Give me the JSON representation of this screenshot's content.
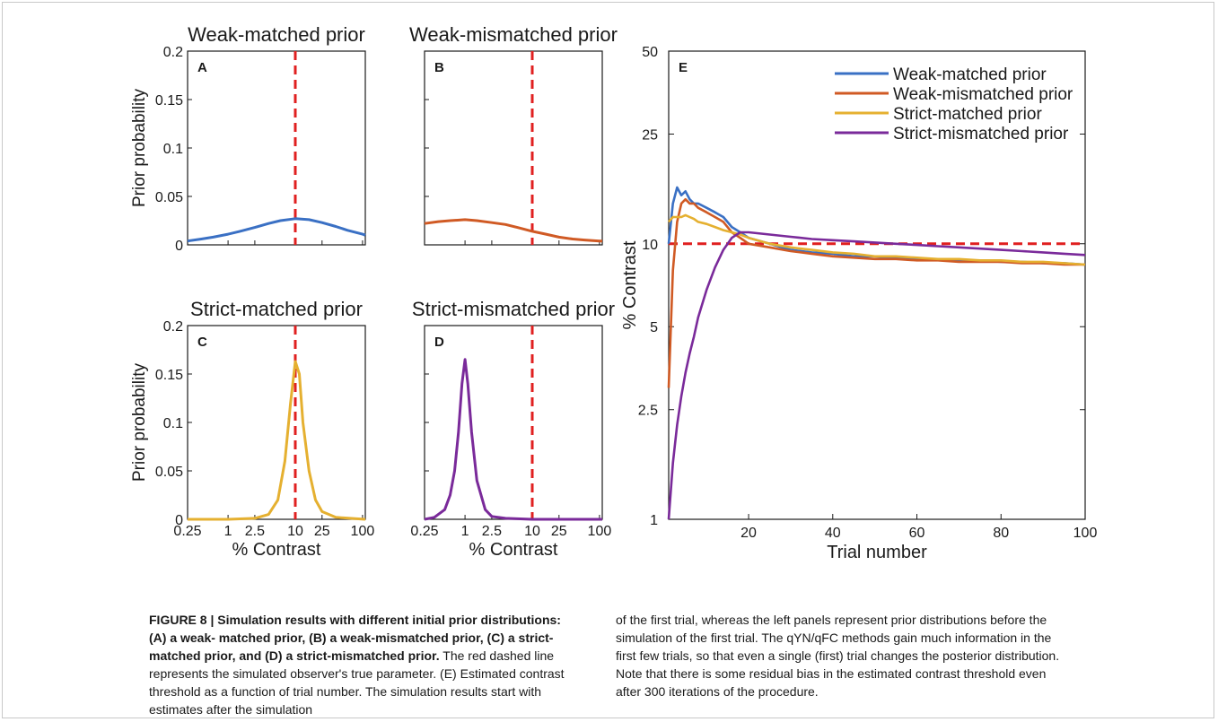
{
  "panels": {
    "A": {
      "title": "Weak-matched prior",
      "letter": "A",
      "ylabel": "Prior probability",
      "yticks": [
        "0",
        "0.05",
        "0.1",
        "0.15",
        "0.2"
      ],
      "ylim": [
        0,
        0.2
      ],
      "truth": 10,
      "color": "#3a70c4",
      "curve": {
        "x": [
          0.25,
          0.4,
          0.6,
          1,
          1.5,
          2.5,
          4,
          6,
          10,
          16,
          25,
          40,
          60,
          100,
          110
        ],
        "y": [
          0.004,
          0.006,
          0.008,
          0.011,
          0.014,
          0.018,
          0.022,
          0.025,
          0.027,
          0.026,
          0.023,
          0.019,
          0.015,
          0.011,
          0.01
        ]
      }
    },
    "B": {
      "title": "Weak-mismatched prior",
      "letter": "B",
      "truth": 10,
      "color": "#d05a24",
      "curve": {
        "x": [
          0.25,
          0.4,
          0.6,
          1,
          1.5,
          2.5,
          4,
          6,
          10,
          16,
          25,
          40,
          60,
          100,
          110
        ],
        "y": [
          0.022,
          0.024,
          0.025,
          0.026,
          0.025,
          0.023,
          0.021,
          0.018,
          0.014,
          0.011,
          0.008,
          0.006,
          0.005,
          0.004,
          0.004
        ]
      }
    },
    "C": {
      "title": "Strict-matched prior",
      "letter": "C",
      "ylabel": "Prior probability",
      "yticks": [
        "0",
        "0.05",
        "0.1",
        "0.15",
        "0.2"
      ],
      "ylim": [
        0,
        0.2
      ],
      "xlabel": "% Contrast",
      "xticks": [
        "0.25",
        "1",
        "2.5",
        "10",
        "25",
        "100"
      ],
      "truth": 10,
      "color": "#e5b030",
      "curve": {
        "x": [
          0.25,
          1,
          2.5,
          4,
          5.5,
          7,
          8.5,
          10,
          11.5,
          13,
          16,
          20,
          25,
          40,
          110
        ],
        "y": [
          0,
          0,
          0.001,
          0.005,
          0.02,
          0.06,
          0.12,
          0.163,
          0.15,
          0.1,
          0.05,
          0.02,
          0.008,
          0.002,
          0
        ]
      }
    },
    "D": {
      "title": "Strict-mismatched prior",
      "letter": "D",
      "xlabel": "% Contrast",
      "xticks": [
        "0.25",
        "1",
        "2.5",
        "10",
        "25",
        "100"
      ],
      "truth": 10,
      "color": "#7a2a9a",
      "curve": {
        "x": [
          0.25,
          0.35,
          0.5,
          0.6,
          0.7,
          0.8,
          0.9,
          1,
          1.1,
          1.25,
          1.5,
          2,
          2.5,
          4,
          10,
          110
        ],
        "y": [
          0,
          0.002,
          0.01,
          0.025,
          0.05,
          0.09,
          0.14,
          0.165,
          0.14,
          0.09,
          0.04,
          0.01,
          0.003,
          0.001,
          0,
          0
        ]
      }
    }
  },
  "panel_e": {
    "letter": "E",
    "ylabel": "% Contrast",
    "xlabel": "Trial number",
    "yticks": [
      "1",
      "2.5",
      "5",
      "10",
      "25",
      "50"
    ],
    "xticks": [
      "20",
      "40",
      "60",
      "80",
      "100"
    ],
    "truth": 10,
    "series": [
      {
        "name": "Weak-matched prior",
        "color": "#3a70c4",
        "x": [
          1,
          2,
          3,
          4,
          5,
          6,
          7,
          8,
          10,
          12,
          14,
          16,
          18,
          20,
          25,
          30,
          35,
          40,
          45,
          50,
          55,
          60,
          65,
          70,
          75,
          80,
          85,
          90,
          95,
          100
        ],
        "y": [
          10,
          14,
          16,
          15,
          15.5,
          14.5,
          14,
          14,
          13.5,
          13,
          12.5,
          11.5,
          11,
          10.5,
          10,
          9.5,
          9.3,
          9.2,
          9,
          9,
          8.9,
          8.8,
          8.8,
          8.7,
          8.7,
          8.6,
          8.6,
          8.5,
          8.5,
          8.4
        ]
      },
      {
        "name": "Weak-mismatched prior",
        "color": "#d05a24",
        "x": [
          1,
          2,
          3,
          4,
          5,
          6,
          7,
          8,
          10,
          12,
          14,
          16,
          18,
          20,
          25,
          30,
          35,
          40,
          45,
          50,
          55,
          60,
          65,
          70,
          75,
          80,
          85,
          90,
          95,
          100
        ],
        "y": [
          3,
          8,
          12,
          14,
          14.5,
          14,
          14,
          13.5,
          13,
          12.5,
          12,
          11,
          10.5,
          10,
          9.7,
          9.4,
          9.2,
          9,
          8.9,
          8.8,
          8.8,
          8.7,
          8.7,
          8.6,
          8.6,
          8.6,
          8.5,
          8.5,
          8.4,
          8.4
        ]
      },
      {
        "name": "Strict-matched prior",
        "color": "#e5b030",
        "x": [
          1,
          2,
          3,
          4,
          5,
          6,
          7,
          8,
          10,
          12,
          14,
          16,
          18,
          20,
          25,
          30,
          35,
          40,
          45,
          50,
          55,
          60,
          65,
          70,
          75,
          80,
          85,
          90,
          95,
          100
        ],
        "y": [
          12,
          12.5,
          12.5,
          12.5,
          12.7,
          12.5,
          12.3,
          12,
          11.8,
          11.5,
          11.2,
          11,
          10.8,
          10.5,
          10,
          9.7,
          9.5,
          9.3,
          9.2,
          9,
          9,
          8.9,
          8.8,
          8.8,
          8.7,
          8.7,
          8.6,
          8.6,
          8.5,
          8.4
        ]
      },
      {
        "name": "Strict-mismatched prior",
        "color": "#7a2a9a",
        "x": [
          1,
          2,
          3,
          4,
          5,
          6,
          7,
          8,
          10,
          12,
          14,
          16,
          18,
          20,
          25,
          30,
          35,
          40,
          45,
          50,
          55,
          60,
          65,
          70,
          75,
          80,
          85,
          90,
          95,
          100
        ],
        "y": [
          1,
          1.6,
          2.2,
          2.8,
          3.4,
          4,
          4.6,
          5.4,
          6.8,
          8.2,
          9.5,
          10.5,
          11,
          11,
          10.8,
          10.6,
          10.4,
          10.3,
          10.2,
          10.1,
          10,
          9.9,
          9.8,
          9.7,
          9.6,
          9.5,
          9.4,
          9.3,
          9.2,
          9.1
        ]
      }
    ]
  },
  "caption": {
    "lead": "FIGURE 8 | Simulation results with different initial prior distributions: (A) a weak- matched prior, (B) a weak-mismatched prior, (C) a strict-matched prior, and (D) a strict-mismatched prior.",
    "left_rest": "The red dashed line represents the simulated observer's true parameter. (E) Estimated contrast threshold as a function of trial number. The simulation results start with estimates after the simulation",
    "right": "of the first trial, whereas the left panels represent prior distributions before the simulation of the first trial. The qYN/qFC methods gain much information in the first few trials, so that even a single (first) trial changes the posterior distribution. Note that there is some residual bias in the estimated contrast threshold even after 300 iterations of the procedure."
  },
  "colors": {
    "truth_line": "#e02020",
    "axis": "#1a1a1a"
  }
}
